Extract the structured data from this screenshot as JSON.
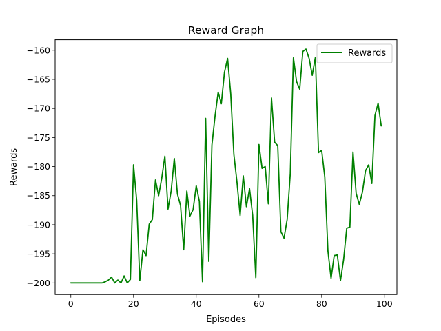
{
  "chart_data": {
    "type": "line",
    "title": "Reward Graph",
    "xlabel": "Episodes",
    "ylabel": "Rewards",
    "xlim": [
      -5,
      104
    ],
    "ylim": [
      -202,
      -158.2
    ],
    "x_ticks": [
      0,
      20,
      40,
      60,
      80,
      100
    ],
    "y_ticks": [
      -200,
      -195,
      -190,
      -185,
      -180,
      -175,
      -170,
      -165,
      -160
    ],
    "grid": false,
    "legend_position": "top-right",
    "series": [
      {
        "name": "Rewards",
        "color": "#008000",
        "x": [
          0,
          1,
          2,
          3,
          4,
          5,
          6,
          7,
          8,
          9,
          10,
          11,
          12,
          13,
          14,
          15,
          16,
          17,
          18,
          19,
          20,
          21,
          22,
          23,
          24,
          25,
          26,
          27,
          28,
          29,
          30,
          31,
          32,
          33,
          34,
          35,
          36,
          37,
          38,
          39,
          40,
          41,
          42,
          43,
          44,
          45,
          46,
          47,
          48,
          49,
          50,
          51,
          52,
          53,
          54,
          55,
          56,
          57,
          58,
          59,
          60,
          61,
          62,
          63,
          64,
          65,
          66,
          67,
          68,
          69,
          70,
          71,
          72,
          73,
          74,
          75,
          76,
          77,
          78,
          79,
          80,
          81,
          82,
          83,
          84,
          85,
          86,
          87,
          88,
          89,
          90,
          91,
          92,
          93,
          94,
          95,
          96,
          97,
          98,
          99
        ],
        "values": [
          -200,
          -200,
          -200,
          -200,
          -200,
          -200,
          -200,
          -200,
          -200,
          -200,
          -200,
          -199.8,
          -199.5,
          -199.0,
          -200.0,
          -199.5,
          -200.0,
          -198.8,
          -200.0,
          -199.4,
          -179.7,
          -185.8,
          -199.6,
          -194.3,
          -195.3,
          -189.9,
          -189.1,
          -182.3,
          -185.0,
          -182.0,
          -178.2,
          -187.3,
          -184.2,
          -178.6,
          -184.7,
          -186.7,
          -194.3,
          -184.2,
          -188.5,
          -187.4,
          -183.3,
          -186.0,
          -199.8,
          -171.7,
          -196.3,
          -176.3,
          -171.3,
          -167.2,
          -169.2,
          -163.8,
          -161.4,
          -167.5,
          -177.9,
          -182.7,
          -188.4,
          -181.6,
          -186.9,
          -183.8,
          -188.4,
          -199.1,
          -176.2,
          -180.3,
          -180.0,
          -186.4,
          -168.2,
          -175.8,
          -176.4,
          -191.2,
          -192.3,
          -189.1,
          -181.2,
          -161.3,
          -165.4,
          -166.7,
          -160.2,
          -159.8,
          -161.4,
          -164.3,
          -161.2,
          -177.6,
          -177.2,
          -181.8,
          -194.5,
          -199.2,
          -195.3,
          -195.2,
          -199.6,
          -196.0,
          -190.6,
          -190.4,
          -177.5,
          -184.6,
          -186.5,
          -184.4,
          -180.7,
          -179.7,
          -182.9,
          -171.2,
          -169.1,
          -173.0
        ]
      }
    ]
  }
}
